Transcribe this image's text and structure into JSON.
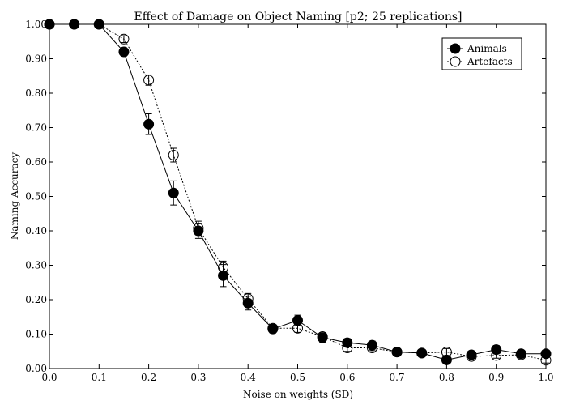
{
  "chart_data": {
    "type": "line",
    "title": "Effect of Damage on Object Naming [p2; 25 replications]",
    "xlabel": "Noise on weights (SD)",
    "ylabel": "Naming Accuracy",
    "xlim": [
      0.0,
      1.0
    ],
    "ylim": [
      0.0,
      1.0
    ],
    "xticks": [
      "0.0",
      "0.1",
      "0.2",
      "0.3",
      "0.4",
      "0.5",
      "0.6",
      "0.7",
      "0.8",
      "0.9",
      "1.0"
    ],
    "yticks": [
      "0.00",
      "0.10",
      "0.20",
      "0.30",
      "0.40",
      "0.50",
      "0.60",
      "0.70",
      "0.80",
      "0.90",
      "1.00"
    ],
    "grid": false,
    "legend_position": "top-right",
    "x": [
      0.0,
      0.05,
      0.1,
      0.15,
      0.2,
      0.25,
      0.3,
      0.35,
      0.4,
      0.45,
      0.5,
      0.55,
      0.6,
      0.65,
      0.7,
      0.75,
      0.8,
      0.85,
      0.9,
      0.95,
      1.0
    ],
    "series": [
      {
        "name": "Animals",
        "marker": "filled-circle",
        "line": "solid",
        "color": "#000000",
        "values": [
          1.0,
          1.0,
          1.0,
          0.92,
          0.71,
          0.51,
          0.4,
          0.27,
          0.19,
          0.115,
          0.14,
          0.09,
          0.075,
          0.068,
          0.048,
          0.045,
          0.025,
          0.04,
          0.055,
          0.043,
          0.043
        ],
        "errors": [
          0.0,
          0.0,
          0.0,
          0.012,
          0.03,
          0.035,
          0.022,
          0.032,
          0.02,
          0.012,
          0.015,
          0.014,
          0.012,
          0.012,
          0.005,
          0.005,
          0.005,
          0.006,
          0.012,
          0.008,
          0.01
        ]
      },
      {
        "name": "Artefacts",
        "marker": "open-circle",
        "line": "dotted",
        "color": "#000000",
        "values": [
          1.0,
          1.0,
          1.0,
          0.957,
          0.838,
          0.62,
          0.408,
          0.294,
          0.203,
          0.117,
          0.117,
          0.093,
          0.06,
          0.06,
          0.048,
          0.045,
          0.048,
          0.035,
          0.038,
          0.04,
          0.024
        ],
        "errors": [
          0.0,
          0.0,
          0.0,
          0.01,
          0.015,
          0.02,
          0.02,
          0.018,
          0.015,
          0.01,
          0.012,
          0.01,
          0.01,
          0.008,
          0.006,
          0.005,
          0.01,
          0.006,
          0.008,
          0.006,
          0.008
        ]
      }
    ]
  }
}
